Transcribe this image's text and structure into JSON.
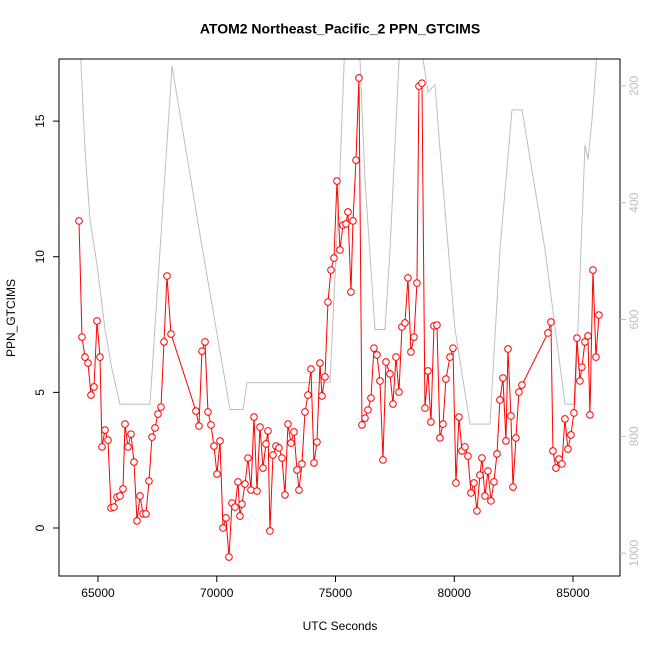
{
  "chart_data": {
    "type": "line",
    "title": "ATOM2 Northeast_Pacific_2 PPN_GTCIMS",
    "xlabel": "UTC Seconds",
    "ylabel": "PPN_GTCIMS",
    "xlim": [
      63358,
      86979
    ],
    "xticks": [
      65000,
      70000,
      75000,
      80000,
      85000
    ],
    "ylim": [
      -1.77,
      17.29
    ],
    "yticks": [
      0,
      5,
      10,
      15
    ],
    "y2lim": [
      1039,
      154
    ],
    "y2ticks": [
      200,
      400,
      600,
      800,
      1000
    ],
    "series": [
      {
        "color": "#ff0000",
        "markers": true,
        "x": [
          64200,
          64326,
          64453,
          64579,
          64705,
          64832,
          64958,
          65084,
          65168,
          65295,
          65421,
          65547,
          65674,
          65800,
          65926,
          66053,
          66137,
          66263,
          66389,
          66516,
          66642,
          66768,
          66895,
          67021,
          67147,
          67273,
          67400,
          67526,
          67652,
          67779,
          67905,
          68073,
          69126,
          69252,
          69378,
          69505,
          69631,
          69757,
          69884,
          70010,
          70136,
          70263,
          70389,
          70515,
          70641,
          70768,
          70894,
          70978,
          71062,
          71189,
          71315,
          71441,
          71568,
          71694,
          71820,
          71947,
          72073,
          72157,
          72241,
          72368,
          72494,
          72620,
          72746,
          72873,
          72999,
          73125,
          73252,
          73378,
          73462,
          73588,
          73715,
          73841,
          73967,
          74094,
          74220,
          74346,
          74430,
          74557,
          74683,
          74809,
          74936,
          75062,
          75188,
          75315,
          75441,
          75525,
          75651,
          75736,
          75862,
          75988,
          76114,
          76241,
          76367,
          76493,
          76620,
          76746,
          76872,
          76999,
          77125,
          77293,
          77420,
          77546,
          77672,
          77798,
          77925,
          78051,
          78177,
          78304,
          78430,
          78514,
          78640,
          78767,
          78893,
          79019,
          79146,
          79272,
          79398,
          79525,
          79651,
          79819,
          79946,
          80072,
          80198,
          80324,
          80451,
          80577,
          80703,
          80830,
          80956,
          81082,
          81166,
          81293,
          81419,
          81545,
          81672,
          81798,
          81924,
          82051,
          82177,
          82261,
          82387,
          82472,
          82598,
          82724,
          82850,
          83945,
          84071,
          84156,
          84282,
          84408,
          84534,
          84661,
          84787,
          84913,
          85040,
          85166,
          85292,
          85376,
          85503,
          85629,
          85713,
          85840,
          85966,
          86092
        ],
        "values": [
          11.32,
          7.04,
          6.3,
          6.08,
          4.9,
          5.2,
          7.63,
          6.3,
          2.99,
          3.61,
          3.24,
          0.74,
          0.77,
          1.14,
          1.18,
          1.44,
          3.83,
          2.99,
          3.46,
          2.43,
          0.26,
          1.18,
          0.52,
          0.52,
          1.73,
          3.35,
          3.69,
          4.2,
          4.46,
          6.86,
          9.29,
          7.15,
          4.31,
          3.76,
          6.52,
          6.86,
          4.28,
          3.8,
          3.02,
          1.99,
          3.21,
          0.0,
          0.37,
          -1.07,
          0.92,
          0.77,
          1.7,
          0.44,
          0.88,
          1.62,
          2.58,
          1.4,
          4.09,
          1.36,
          3.72,
          2.21,
          3.1,
          3.58,
          -0.11,
          2.69,
          3.02,
          2.95,
          2.58,
          1.22,
          3.83,
          3.13,
          3.54,
          2.14,
          1.4,
          2.36,
          4.28,
          4.9,
          5.86,
          2.4,
          3.17,
          6.08,
          4.87,
          5.57,
          8.33,
          9.51,
          9.95,
          12.79,
          10.25,
          11.17,
          11.21,
          11.65,
          8.7,
          11.32,
          13.56,
          16.59,
          3.8,
          4.05,
          4.35,
          4.79,
          6.63,
          6.38,
          5.42,
          2.51,
          6.12,
          5.68,
          4.57,
          6.3,
          5.01,
          7.41,
          7.56,
          9.22,
          6.49,
          7.04,
          9.03,
          16.29,
          16.4,
          4.42,
          5.79,
          3.91,
          7.45,
          7.48,
          3.32,
          3.83,
          5.49,
          6.3,
          6.63,
          1.66,
          4.09,
          2.84,
          2.99,
          2.65,
          1.29,
          1.66,
          0.63,
          1.95,
          2.58,
          1.18,
          2.1,
          1.0,
          1.7,
          2.73,
          4.72,
          5.53,
          3.21,
          6.6,
          4.13,
          1.51,
          3.32,
          5.01,
          5.27,
          7.19,
          7.59,
          2.84,
          2.21,
          2.54,
          2.36,
          4.02,
          2.91,
          3.43,
          4.24,
          7.0,
          5.42,
          5.93,
          6.86,
          7.08,
          4.17,
          9.51,
          6.3,
          7.85
        ]
      },
      {
        "color": "#bebebe",
        "axis": "y2",
        "markers": false,
        "x": [
          64200,
          64453,
          64663,
          64958,
          65295,
          65589,
          65926,
          67189,
          68116,
          69295,
          70558,
          71105,
          71274,
          74768,
          75189,
          75400,
          76032,
          76242,
          76663,
          77084,
          77295,
          77716,
          78558,
          78895,
          79189,
          79400,
          80032,
          80663,
          81505,
          81926,
          82432,
          82853,
          83821,
          84663,
          85084,
          85505,
          85632,
          85800,
          86053
        ],
        "values": [
          90,
          309,
          429,
          506,
          617,
          685,
          745,
          745,
          166,
          455,
          754,
          754,
          708,
          708,
          344,
          121,
          156,
          361,
          617,
          617,
          480,
          121,
          121,
          210,
          198,
          309,
          617,
          779,
          779,
          480,
          241,
          241,
          480,
          745,
          745,
          301,
          326,
          258,
          121
        ]
      }
    ]
  }
}
